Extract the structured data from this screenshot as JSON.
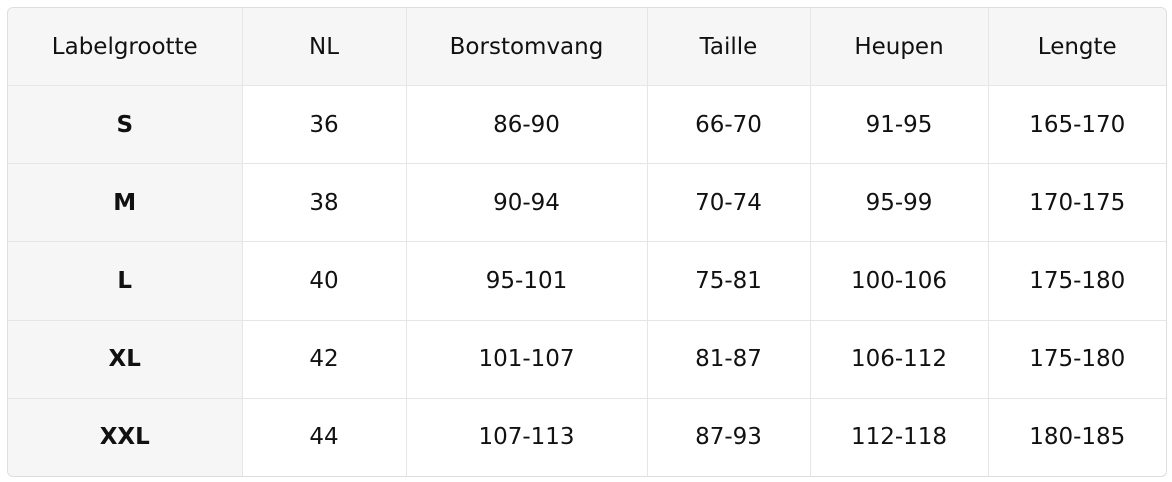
{
  "table": {
    "header": [
      "Labelgrootte",
      "NL",
      "Borstomvang",
      "Taille",
      "Heupen",
      "Lengte"
    ],
    "rows": [
      [
        "S",
        "36",
        "86-90",
        "66-70",
        "91-95",
        "165-170"
      ],
      [
        "M",
        "38",
        "90-94",
        "70-74",
        "95-99",
        "170-175"
      ],
      [
        "L",
        "40",
        "95-101",
        "75-81",
        "100-106",
        "175-180"
      ],
      [
        "XL",
        "42",
        "101-107",
        "81-87",
        "106-112",
        "175-180"
      ],
      [
        "XXL",
        "44",
        "107-113",
        "87-93",
        "112-118",
        "180-185"
      ]
    ]
  }
}
